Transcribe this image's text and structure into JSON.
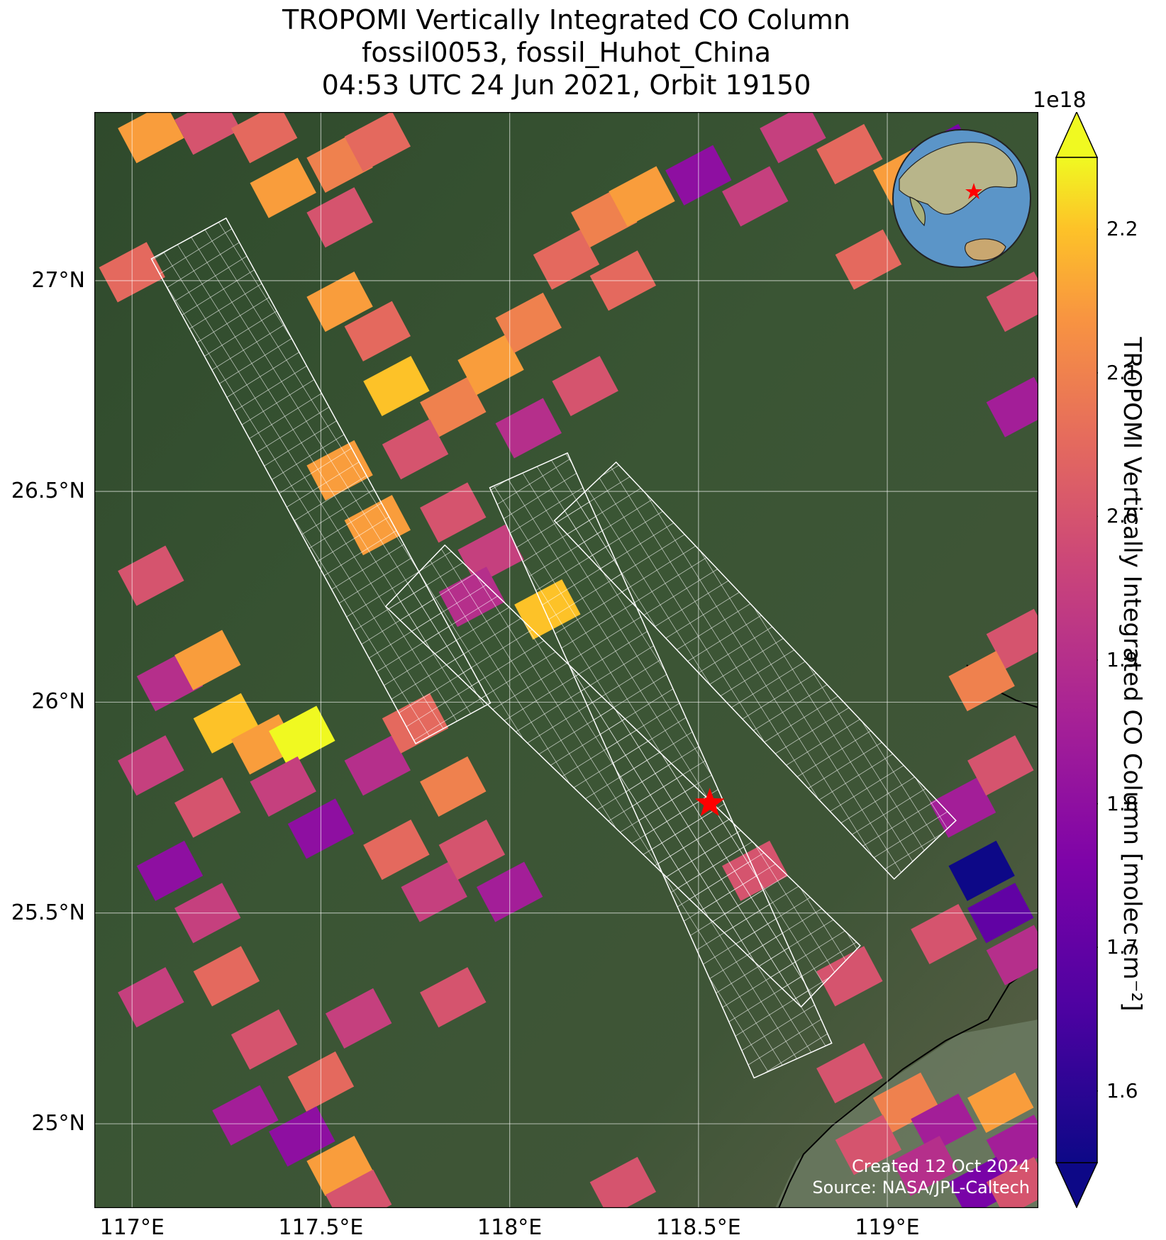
{
  "title": {
    "line1": "TROPOMI Vertically Integrated CO Column",
    "line2": "fossil0053, fossil_Huhot_China",
    "line3": "04:53 UTC 24 Jun 2021, Orbit 19150"
  },
  "map": {
    "lon_range": [
      116.9,
      119.4
    ],
    "lat_range": [
      24.8,
      27.4
    ],
    "lat_ticks": [
      {
        "value": 27.0,
        "label": "27°N"
      },
      {
        "value": 26.5,
        "label": "26.5°N"
      },
      {
        "value": 26.0,
        "label": "26°N"
      },
      {
        "value": 25.5,
        "label": "25.5°N"
      },
      {
        "value": 25.0,
        "label": "25°N"
      }
    ],
    "lon_ticks": [
      {
        "value": 117.0,
        "label": "117°E"
      },
      {
        "value": 117.5,
        "label": "117.5°E"
      },
      {
        "value": 118.0,
        "label": "118°E"
      },
      {
        "value": 118.5,
        "label": "118.5°E"
      },
      {
        "value": 119.0,
        "label": "119°E"
      }
    ],
    "gridlines": true,
    "background": "satellite imagery, forested mountains",
    "site_marker": {
      "lon": 118.53,
      "lat": 25.76,
      "symbol": "red-star",
      "color": "#ff0000"
    },
    "inset": {
      "type": "globe",
      "placement": "top-right",
      "marker": "red-star"
    }
  },
  "colorbar": {
    "label": "TROPOMI Vertically Integrated CO Column [molec cm⁻²]",
    "exponent": "1e18",
    "colormap": "plasma",
    "min": 1.55,
    "max": 2.25,
    "extend": "both",
    "ticks": [
      {
        "value": 1.6,
        "label": "1.6"
      },
      {
        "value": 1.7,
        "label": "1.7"
      },
      {
        "value": 1.8,
        "label": "1.8"
      },
      {
        "value": 1.9,
        "label": "1.9"
      },
      {
        "value": 2.0,
        "label": "2.0"
      },
      {
        "value": 2.1,
        "label": "2.1"
      },
      {
        "value": 2.2,
        "label": "2.2"
      }
    ]
  },
  "credits": {
    "created": "Created 12 Oct 2024",
    "source": "Source: NASA/JPL-Caltech"
  },
  "chart_data": {
    "type": "heatmap",
    "units": "molec cm⁻² (×1e18)",
    "pixels": [
      {
        "lon": 117.05,
        "lat": 27.35,
        "v": 2.15
      },
      {
        "lon": 117.2,
        "lat": 27.37,
        "v": 2.0
      },
      {
        "lon": 117.35,
        "lat": 27.35,
        "v": 2.05
      },
      {
        "lon": 117.4,
        "lat": 27.22,
        "v": 2.15
      },
      {
        "lon": 117.55,
        "lat": 27.28,
        "v": 2.1
      },
      {
        "lon": 117.65,
        "lat": 27.33,
        "v": 2.05
      },
      {
        "lon": 117.55,
        "lat": 27.15,
        "v": 2.0
      },
      {
        "lon": 117.0,
        "lat": 27.02,
        "v": 2.05
      },
      {
        "lon": 117.55,
        "lat": 26.95,
        "v": 2.15
      },
      {
        "lon": 117.65,
        "lat": 26.88,
        "v": 2.05
      },
      {
        "lon": 117.7,
        "lat": 26.75,
        "v": 2.2
      },
      {
        "lon": 117.85,
        "lat": 26.7,
        "v": 2.1
      },
      {
        "lon": 117.75,
        "lat": 26.6,
        "v": 2.0
      },
      {
        "lon": 117.95,
        "lat": 26.8,
        "v": 2.15
      },
      {
        "lon": 118.05,
        "lat": 26.9,
        "v": 2.1
      },
      {
        "lon": 118.15,
        "lat": 27.05,
        "v": 2.05
      },
      {
        "lon": 118.25,
        "lat": 27.15,
        "v": 2.1
      },
      {
        "lon": 118.35,
        "lat": 27.2,
        "v": 2.15
      },
      {
        "lon": 118.05,
        "lat": 26.65,
        "v": 1.9
      },
      {
        "lon": 118.2,
        "lat": 26.75,
        "v": 2.0
      },
      {
        "lon": 117.55,
        "lat": 26.55,
        "v": 2.15
      },
      {
        "lon": 117.65,
        "lat": 26.42,
        "v": 2.15
      },
      {
        "lon": 117.85,
        "lat": 26.45,
        "v": 2.0
      },
      {
        "lon": 117.95,
        "lat": 26.35,
        "v": 1.95
      },
      {
        "lon": 117.9,
        "lat": 26.25,
        "v": 1.9
      },
      {
        "lon": 118.1,
        "lat": 26.22,
        "v": 2.2
      },
      {
        "lon": 117.05,
        "lat": 26.3,
        "v": 2.0
      },
      {
        "lon": 117.1,
        "lat": 26.05,
        "v": 1.9
      },
      {
        "lon": 117.2,
        "lat": 26.1,
        "v": 2.15
      },
      {
        "lon": 117.25,
        "lat": 25.95,
        "v": 2.2
      },
      {
        "lon": 117.35,
        "lat": 25.9,
        "v": 2.15
      },
      {
        "lon": 117.45,
        "lat": 25.92,
        "v": 2.25
      },
      {
        "lon": 117.05,
        "lat": 25.85,
        "v": 1.95
      },
      {
        "lon": 117.2,
        "lat": 25.75,
        "v": 2.0
      },
      {
        "lon": 117.4,
        "lat": 25.8,
        "v": 1.95
      },
      {
        "lon": 117.5,
        "lat": 25.7,
        "v": 1.8
      },
      {
        "lon": 117.65,
        "lat": 25.85,
        "v": 1.9
      },
      {
        "lon": 117.75,
        "lat": 25.95,
        "v": 2.05
      },
      {
        "lon": 117.85,
        "lat": 25.8,
        "v": 2.1
      },
      {
        "lon": 117.7,
        "lat": 25.65,
        "v": 2.05
      },
      {
        "lon": 117.8,
        "lat": 25.55,
        "v": 1.95
      },
      {
        "lon": 117.9,
        "lat": 25.65,
        "v": 2.0
      },
      {
        "lon": 118.0,
        "lat": 25.55,
        "v": 1.85
      },
      {
        "lon": 117.1,
        "lat": 25.6,
        "v": 1.8
      },
      {
        "lon": 117.2,
        "lat": 25.5,
        "v": 1.95
      },
      {
        "lon": 117.25,
        "lat": 25.35,
        "v": 2.05
      },
      {
        "lon": 117.05,
        "lat": 25.3,
        "v": 1.95
      },
      {
        "lon": 117.35,
        "lat": 25.2,
        "v": 2.0
      },
      {
        "lon": 117.5,
        "lat": 25.1,
        "v": 2.05
      },
      {
        "lon": 117.6,
        "lat": 25.25,
        "v": 1.95
      },
      {
        "lon": 117.85,
        "lat": 25.3,
        "v": 2.0
      },
      {
        "lon": 117.3,
        "lat": 25.02,
        "v": 1.85
      },
      {
        "lon": 117.45,
        "lat": 24.97,
        "v": 1.8
      },
      {
        "lon": 117.55,
        "lat": 24.9,
        "v": 2.15
      },
      {
        "lon": 117.6,
        "lat": 24.82,
        "v": 2.0
      },
      {
        "lon": 118.3,
        "lat": 24.85,
        "v": 2.0
      },
      {
        "lon": 118.65,
        "lat": 25.6,
        "v": 2.0
      },
      {
        "lon": 118.75,
        "lat": 27.35,
        "v": 1.95
      },
      {
        "lon": 118.9,
        "lat": 27.3,
        "v": 2.05
      },
      {
        "lon": 119.05,
        "lat": 27.25,
        "v": 2.15
      },
      {
        "lon": 119.15,
        "lat": 27.3,
        "v": 1.75
      },
      {
        "lon": 118.5,
        "lat": 27.25,
        "v": 1.8
      },
      {
        "lon": 118.65,
        "lat": 27.2,
        "v": 1.95
      },
      {
        "lon": 118.95,
        "lat": 27.05,
        "v": 2.05
      },
      {
        "lon": 118.3,
        "lat": 27.0,
        "v": 2.05
      },
      {
        "lon": 119.35,
        "lat": 26.95,
        "v": 2.0
      },
      {
        "lon": 119.35,
        "lat": 26.7,
        "v": 1.85
      },
      {
        "lon": 119.35,
        "lat": 26.15,
        "v": 2.0
      },
      {
        "lon": 119.25,
        "lat": 26.05,
        "v": 2.1
      },
      {
        "lon": 119.2,
        "lat": 25.75,
        "v": 1.85
      },
      {
        "lon": 119.3,
        "lat": 25.85,
        "v": 2.0
      },
      {
        "lon": 119.25,
        "lat": 25.6,
        "v": 1.55
      },
      {
        "lon": 119.3,
        "lat": 25.5,
        "v": 1.7
      },
      {
        "lon": 119.15,
        "lat": 25.45,
        "v": 2.0
      },
      {
        "lon": 119.35,
        "lat": 25.4,
        "v": 1.9
      },
      {
        "lon": 118.9,
        "lat": 25.35,
        "v": 2.0
      },
      {
        "lon": 118.9,
        "lat": 25.12,
        "v": 2.0
      },
      {
        "lon": 119.05,
        "lat": 25.05,
        "v": 2.1
      },
      {
        "lon": 119.15,
        "lat": 25.0,
        "v": 1.85
      },
      {
        "lon": 119.3,
        "lat": 25.05,
        "v": 2.15
      },
      {
        "lon": 119.35,
        "lat": 24.95,
        "v": 1.85
      },
      {
        "lon": 118.95,
        "lat": 24.95,
        "v": 2.0
      },
      {
        "lon": 119.1,
        "lat": 24.9,
        "v": 1.9
      },
      {
        "lon": 119.25,
        "lat": 24.85,
        "v": 1.75
      },
      {
        "lon": 119.35,
        "lat": 24.85,
        "v": 2.0
      }
    ],
    "sounding_swaths": [
      {
        "start": [
          117.15,
          27.1
        ],
        "end": [
          117.85,
          25.95
        ],
        "style": "white-grid"
      },
      {
        "start": [
          118.05,
          26.55
        ],
        "end": [
          118.75,
          25.15
        ],
        "style": "white-grid"
      },
      {
        "start": [
          117.75,
          26.3
        ],
        "end": [
          118.85,
          25.35
        ],
        "style": "white-grid"
      },
      {
        "start": [
          118.2,
          26.5
        ],
        "end": [
          119.1,
          25.65
        ],
        "style": "white-grid"
      }
    ]
  }
}
